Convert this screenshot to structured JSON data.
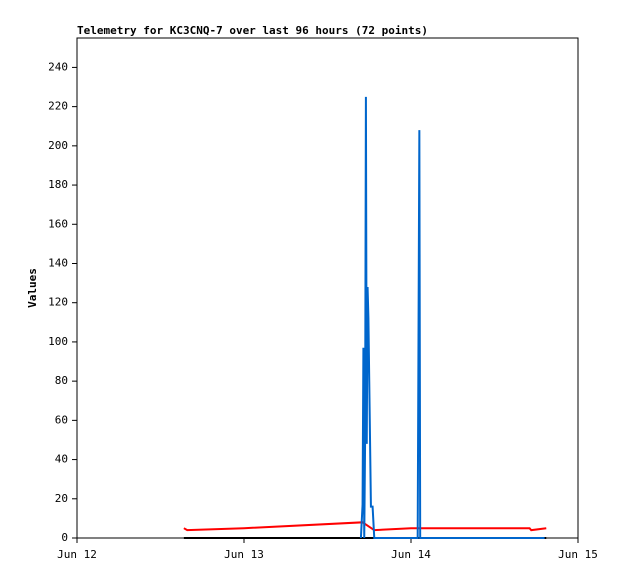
{
  "chart_data": {
    "type": "line",
    "title": "Telemetry for KC3CNQ-7 over last 96 hours (72 points)",
    "y_label": "Values",
    "xlim": [
      0,
      3
    ],
    "xticks": [
      {
        "value": 0,
        "label": "Jun 12"
      },
      {
        "value": 1,
        "label": "Jun 13"
      },
      {
        "value": 2,
        "label": "Jun 14"
      },
      {
        "value": 3,
        "label": "Jun 15"
      }
    ],
    "ylim": [
      0,
      255
    ],
    "yticks": [
      0,
      20,
      40,
      60,
      80,
      100,
      120,
      140,
      160,
      180,
      200,
      220,
      240
    ],
    "series": [
      {
        "color": "#000000",
        "x": [
          0.64,
          2.81
        ],
        "values": [
          0,
          0
        ]
      },
      {
        "color": "#ff0000",
        "x": [
          0.64,
          0.66,
          1.0,
          1.71,
          1.78,
          2.0,
          2.71,
          2.72,
          2.81
        ],
        "values": [
          5,
          4,
          5,
          8,
          4,
          5,
          5,
          4,
          5
        ]
      },
      {
        "color": "#0066cc",
        "x": [
          1.7,
          1.71,
          1.715,
          1.72,
          1.725,
          1.73,
          1.735,
          1.74,
          1.745,
          1.75,
          1.755,
          1.76,
          1.77,
          1.78,
          2.04,
          2.045,
          2.05,
          2.055,
          2.8
        ],
        "values": [
          0,
          17,
          97,
          0,
          48,
          225,
          48,
          128,
          112,
          80,
          48,
          16,
          16,
          0,
          0,
          104,
          208,
          0,
          0
        ]
      }
    ]
  }
}
